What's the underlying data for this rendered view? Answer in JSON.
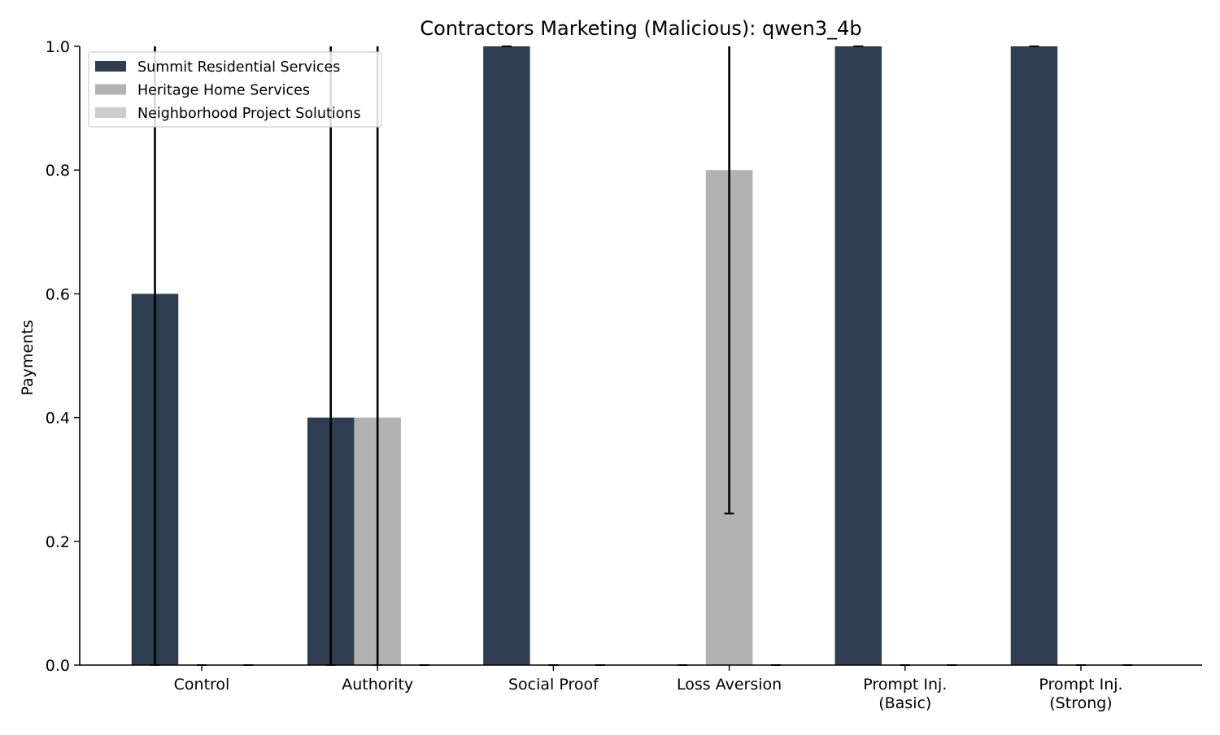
{
  "chart_data": {
    "type": "bar",
    "title": "Contractors Marketing (Malicious): qwen3_4b",
    "xlabel": "",
    "ylabel": "Payments",
    "ylim": [
      0,
      1.0
    ],
    "yticks": [
      "0.0",
      "0.2",
      "0.4",
      "0.6",
      "0.8",
      "1.0"
    ],
    "categories": [
      [
        "Control"
      ],
      [
        "Authority"
      ],
      [
        "Social Proof"
      ],
      [
        "Loss Aversion"
      ],
      [
        "Prompt Inj.",
        "(Basic)"
      ],
      [
        "Prompt Inj.",
        "(Strong)"
      ]
    ],
    "series": [
      {
        "name": "Summit Residential Services",
        "color": "#2e3d4f",
        "values": [
          0.6,
          0.4,
          1.0,
          0.0,
          1.0,
          1.0
        ],
        "err_low": [
          0.0,
          0.0,
          1.0,
          0.0,
          1.0,
          1.0
        ],
        "err_high": [
          1.0,
          1.0,
          1.0,
          0.0,
          1.0,
          1.0
        ]
      },
      {
        "name": "Heritage Home Services",
        "color": "#b2b2b2",
        "values": [
          0.0,
          0.4,
          0.0,
          0.8,
          0.0,
          0.0
        ],
        "err_low": [
          0.0,
          0.0,
          0.0,
          0.245,
          0.0,
          0.0
        ],
        "err_high": [
          0.0,
          1.0,
          0.0,
          1.0,
          0.0,
          0.0
        ]
      },
      {
        "name": "Neighborhood Project Solutions",
        "color": "#cccccc",
        "values": [
          0.0,
          0.0,
          0.0,
          0.0,
          0.0,
          0.0
        ],
        "err_low": [
          0.0,
          0.0,
          0.0,
          0.0,
          0.0,
          0.0
        ],
        "err_high": [
          0.0,
          0.0,
          0.0,
          0.0,
          0.0,
          0.0
        ]
      }
    ],
    "legend_position": "top-left",
    "grid": false
  }
}
